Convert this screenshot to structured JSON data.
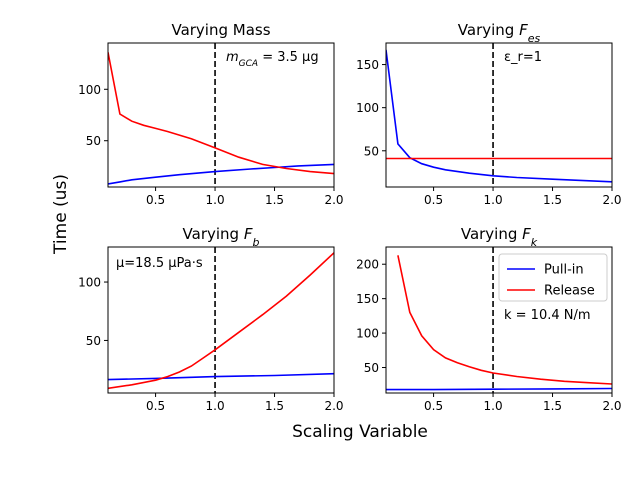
{
  "figure": {
    "ylabel": "Time (us)",
    "xlabel": "Scaling Variable"
  },
  "legend": {
    "items": [
      {
        "label": "Pull-in",
        "color": "#0000ff"
      },
      {
        "label": "Release",
        "color": "#ff0000"
      }
    ]
  },
  "chart_data": [
    {
      "type": "line",
      "title": "Varying Mass",
      "annotation": "m_GCA = 3.5 μg",
      "xlim": [
        0.1,
        2.0
      ],
      "ylim": [
        5,
        145
      ],
      "xticks": [
        0.5,
        1.0,
        1.5,
        2.0
      ],
      "yticks": [
        50,
        100
      ],
      "vline": 1.0,
      "series": [
        {
          "name": "Pull-in",
          "color": "#0000ff",
          "x": [
            0.1,
            0.2,
            0.3,
            0.5,
            0.7,
            1.0,
            1.3,
            1.5,
            1.7,
            2.0
          ],
          "y": [
            8,
            10,
            12,
            14.5,
            17,
            20,
            22.5,
            24,
            25.5,
            27
          ]
        },
        {
          "name": "Release",
          "color": "#ff0000",
          "x": [
            0.1,
            0.2,
            0.3,
            0.4,
            0.5,
            0.6,
            0.8,
            1.0,
            1.2,
            1.4,
            1.6,
            1.8,
            2.0
          ],
          "y": [
            136,
            76,
            69,
            65,
            62,
            59,
            52,
            43,
            34,
            27,
            23,
            20,
            18
          ]
        }
      ]
    },
    {
      "type": "line",
      "title": "Varying F_es",
      "annotation": "ε_r=1",
      "xlim": [
        0.1,
        2.0
      ],
      "ylim": [
        8,
        175
      ],
      "xticks": [
        0.5,
        1.0,
        1.5,
        2.0
      ],
      "yticks": [
        50,
        100,
        150
      ],
      "vline": 1.0,
      "series": [
        {
          "name": "Pull-in",
          "color": "#0000ff",
          "x": [
            0.1,
            0.2,
            0.3,
            0.4,
            0.5,
            0.6,
            0.8,
            1.0,
            1.2,
            1.5,
            2.0
          ],
          "y": [
            167,
            58,
            42,
            35,
            31,
            28,
            24,
            21,
            19,
            17,
            14
          ]
        },
        {
          "name": "Release",
          "color": "#ff0000",
          "x": [
            0.1,
            2.0
          ],
          "y": [
            41,
            41
          ]
        }
      ]
    },
    {
      "type": "line",
      "title": "Varying F_b",
      "annotation": "μ=18.5 μPa·s",
      "xlim": [
        0.1,
        2.0
      ],
      "ylim": [
        5,
        130
      ],
      "xticks": [
        0.5,
        1.0,
        1.5,
        2.0
      ],
      "yticks": [
        50,
        100
      ],
      "vline": 1.0,
      "series": [
        {
          "name": "Pull-in",
          "color": "#0000ff",
          "x": [
            0.1,
            0.5,
            1.0,
            1.5,
            2.0
          ],
          "y": [
            16.5,
            17.5,
            19,
            20,
            21.5
          ]
        },
        {
          "name": "Release",
          "color": "#ff0000",
          "x": [
            0.1,
            0.3,
            0.5,
            0.6,
            0.7,
            0.8,
            0.9,
            1.0,
            1.2,
            1.4,
            1.6,
            1.8,
            2.0
          ],
          "y": [
            9,
            12,
            16,
            19,
            23,
            28,
            35,
            42,
            57,
            72,
            88,
            106,
            125
          ]
        }
      ]
    },
    {
      "type": "line",
      "title": "Varying F_k",
      "annotation": "k = 10.4 N/m",
      "xlim": [
        0.1,
        2.0
      ],
      "ylim": [
        13,
        225
      ],
      "xticks": [
        0.5,
        1.0,
        1.5,
        2.0
      ],
      "yticks": [
        50,
        100,
        150,
        200
      ],
      "vline": 1.0,
      "series": [
        {
          "name": "Pull-in",
          "color": "#0000ff",
          "x": [
            0.1,
            0.5,
            1.0,
            1.5,
            2.0
          ],
          "y": [
            18,
            18,
            18.5,
            19,
            19.5
          ]
        },
        {
          "name": "Release",
          "color": "#ff0000",
          "x": [
            0.2,
            0.3,
            0.4,
            0.5,
            0.6,
            0.7,
            0.8,
            0.9,
            1.0,
            1.2,
            1.4,
            1.6,
            1.8,
            2.0
          ],
          "y": [
            213,
            130,
            96,
            76,
            64,
            57,
            51,
            46,
            42,
            37,
            33,
            30,
            28,
            26
          ]
        }
      ]
    }
  ]
}
